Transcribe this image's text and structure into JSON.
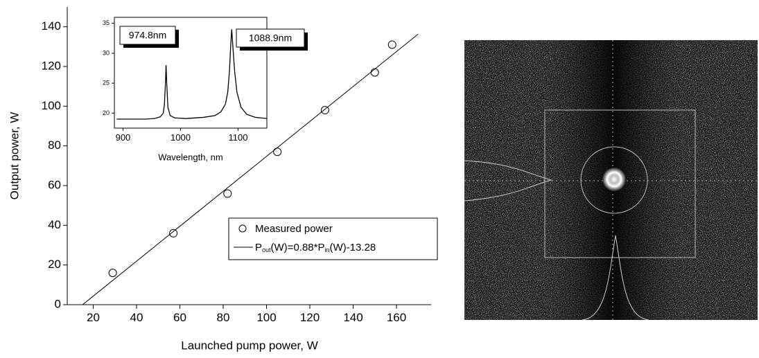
{
  "chart_data": [
    {
      "type": "scatter",
      "xlabel": "Launched pump power, W",
      "ylabel": "Output power, W",
      "xlim": [
        8,
        176
      ],
      "ylim": [
        0,
        150
      ],
      "xticks": [
        20,
        40,
        60,
        80,
        100,
        120,
        140,
        160
      ],
      "yticks": [
        0,
        20,
        40,
        60,
        80,
        100,
        120,
        140
      ],
      "series": [
        {
          "name": "Measured power",
          "color": "#000000",
          "x": [
            29,
            57,
            82,
            105,
            127,
            150,
            158
          ],
          "values": [
            16,
            36,
            56,
            77,
            98,
            117,
            131
          ]
        }
      ],
      "fit": {
        "label_parts": [
          "P",
          "out",
          "(W)=0.88*P",
          "in",
          "(W)-13.28"
        ],
        "color": "#000000",
        "x": [
          15.1,
          170
        ],
        "values": [
          0,
          136.3
        ]
      }
    },
    {
      "type": "line",
      "xlabel": "Wavelength, nm",
      "xlim": [
        885,
        1150
      ],
      "ylim": [
        17.5,
        36
      ],
      "xticks": [
        900,
        1000,
        1100
      ],
      "yticks": [
        20,
        25,
        30,
        35
      ],
      "series": [
        {
          "color": "#000000",
          "x": [
            889,
            920,
            940,
            955,
            965,
            970,
            972,
            974,
            974.8,
            976,
            978,
            982,
            990,
            1010,
            1040,
            1060,
            1070,
            1078,
            1082,
            1085,
            1087,
            1088.9,
            1091,
            1094,
            1098,
            1105,
            1115,
            1130,
            1150
          ],
          "values": [
            19,
            19,
            19,
            19.1,
            19.4,
            20,
            21.5,
            25.5,
            28,
            25,
            21,
            19.6,
            19.2,
            19.1,
            19.3,
            19.6,
            20.2,
            21.5,
            23.5,
            27,
            31,
            34,
            31,
            27,
            23.5,
            21,
            19.8,
            19.3,
            19.1
          ]
        }
      ],
      "annotations": [
        "974.8nm",
        "1088.9nm"
      ]
    }
  ]
}
